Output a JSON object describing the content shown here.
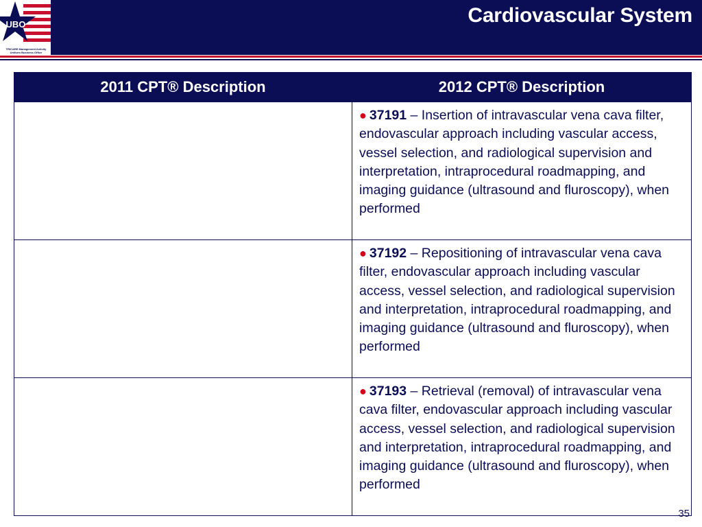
{
  "header": {
    "title": "Cardiovascular System",
    "logo_text": "UBO",
    "logo_caption_line1": "TRICARE Management Activity",
    "logo_caption_line2": "Uniform Business Office"
  },
  "colors": {
    "navy": "#0b0e55",
    "red": "#c8102e",
    "bullet": "#d4001a"
  },
  "table": {
    "headers": [
      "2011 CPT® Description",
      "2012 CPT® Description"
    ],
    "rows": [
      {
        "col2011": "",
        "code": "37191",
        "description": "– Insertion of intravascular vena cava filter, endovascular approach including vascular access, vessel selection, and radiological supervision and interpretation, intraprocedural roadmapping, and imaging guidance (ultrasound and fluroscopy), when performed"
      },
      {
        "col2011": "",
        "code": "37192",
        "description": "– Repositioning of intravascular vena cava filter, endovascular approach including vascular access, vessel selection, and radiological supervision and interpretation, intraprocedural roadmapping, and imaging guidance (ultrasound and fluroscopy), when performed"
      },
      {
        "col2011": "",
        "code": "37193",
        "description": "– Retrieval (removal) of intravascular vena cava filter, endovascular approach including vascular access, vessel selection, and radiological supervision and interpretation, intraprocedural roadmapping, and imaging guidance (ultrasound and fluroscopy), when performed"
      }
    ]
  },
  "footer": {
    "page_number": "35"
  }
}
